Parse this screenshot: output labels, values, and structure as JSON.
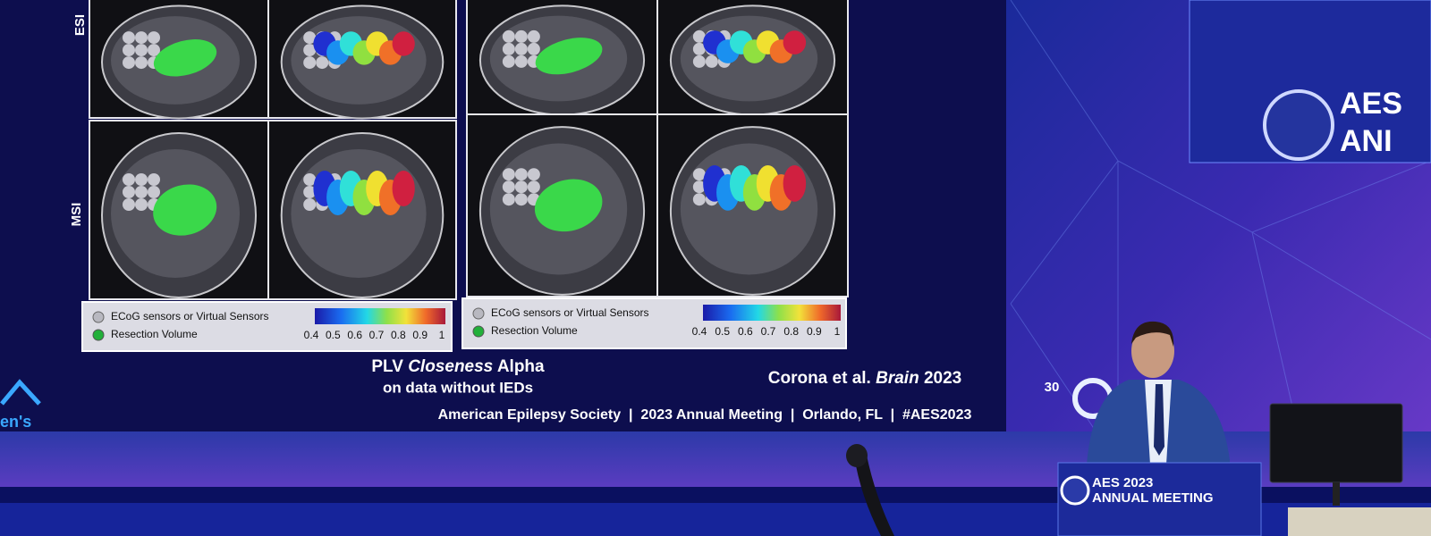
{
  "slide": {
    "row_labels": [
      "ESI",
      "MSI"
    ],
    "legends": [
      {
        "items": [
          "ECoG sensors or Virtual Sensors",
          "Resection Volume"
        ],
        "scale_ticks": [
          0.4,
          0.5,
          0.6,
          0.7,
          0.8,
          0.9,
          1
        ]
      },
      {
        "items": [
          "ECoG sensors or Virtual Sensors",
          "Resection Volume"
        ],
        "scale_ticks": [
          0.4,
          0.5,
          0.6,
          0.7,
          0.8,
          0.9,
          1
        ]
      }
    ],
    "title": {
      "prefix": "PLV",
      "italic": "Closeness",
      "suffix": "Alpha"
    },
    "subtitle": "on data without IEDs",
    "citation": {
      "authors": "Corona et al.",
      "journal": "Brain",
      "year": "2023"
    },
    "footer": "American Epilepsy Society  |  2023 Annual Meeting  |  Orlando, FL  |  #AES2023",
    "slide_number": "30",
    "logo_fragment": "en's"
  },
  "podium": {
    "line1": "AES 2023",
    "line2": "ANNUAL MEETING"
  },
  "side_screen": {
    "line1": "AES",
    "line2": "ANI"
  }
}
